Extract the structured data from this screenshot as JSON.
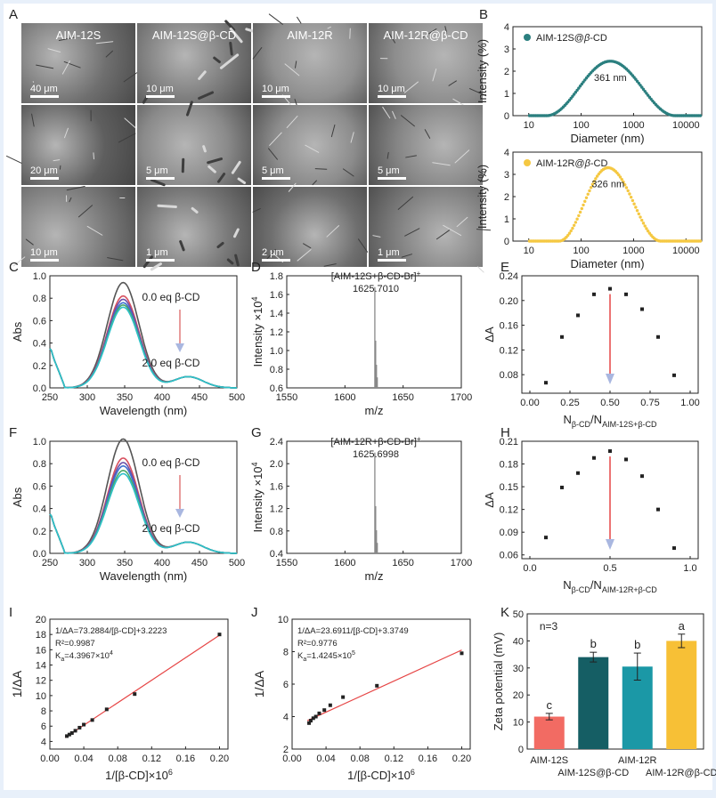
{
  "panels": {
    "A": "A",
    "B": "B",
    "C": "C",
    "D": "D",
    "E": "E",
    "F": "F",
    "G": "G",
    "H": "H",
    "I": "I",
    "J": "J",
    "K": "K"
  },
  "sem": {
    "headers": [
      "AIM-12S",
      "AIM-12S@β-CD",
      "AIM-12R",
      "AIM-12R@β-CD"
    ],
    "scales": [
      [
        "40 μm",
        "10 μm",
        "10 μm",
        "10 μm"
      ],
      [
        "20 μm",
        "5 μm",
        "5 μm",
        "5 μm"
      ],
      [
        "10 μm",
        "1 μm",
        "2 μm",
        "1 μm"
      ]
    ]
  },
  "colors": {
    "teal": "#2b7f7f",
    "yellow": "#f5c842",
    "red": "#e64545",
    "blue": "#a9b7e0",
    "accent": "#ef6b63"
  },
  "dls": [
    {
      "legend_prefix": "AIM-12S@",
      "legend_beta": "β",
      "legend_suffix": "-CD",
      "peak_label": "361 nm",
      "peak": 361,
      "range": [
        22,
        6200
      ],
      "ylabel": "Intensity (%)",
      "xlabel": "Diameter (nm)",
      "yticks": [
        "0",
        "1",
        "2",
        "3",
        "4"
      ],
      "xticks": [
        "10",
        "100",
        "1000",
        "10000"
      ]
    },
    {
      "legend_prefix": "AIM-12R@",
      "legend_beta": "β",
      "legend_suffix": "-CD",
      "peak_label": "326 nm",
      "peak": 326,
      "range": [
        38,
        3300
      ],
      "ylabel": "Intensity (%)",
      "xlabel": "Diameter (nm)",
      "yticks": [
        "0",
        "1",
        "2",
        "3",
        "4"
      ],
      "xticks": [
        "10",
        "100",
        "1000",
        "10000"
      ]
    }
  ],
  "uv": [
    {
      "ylabel": "Abs",
      "xlabel": "Wavelength (nm)",
      "yticks": [
        "0.0",
        "0.2",
        "0.4",
        "0.6",
        "0.8",
        "1.0"
      ],
      "xticks": [
        "250",
        "300",
        "350",
        "400",
        "450",
        "500"
      ],
      "top_note": "0.0 eq β-CD",
      "bottom_note": "2.0 eq β-CD",
      "peaks": [
        0.94,
        0.82,
        0.79,
        0.76,
        0.74,
        0.72
      ],
      "series_colors": [
        "#555555",
        "#d7505f",
        "#6b4fa8",
        "#3d6fd0",
        "#48a868",
        "#2ec0c8"
      ]
    },
    {
      "ylabel": "Abs",
      "xlabel": "Wavelength (nm)",
      "yticks": [
        "0.0",
        "0.2",
        "0.4",
        "0.6",
        "0.8",
        "1.0"
      ],
      "xticks": [
        "250",
        "300",
        "350",
        "400",
        "450",
        "500"
      ],
      "top_note": "0.0 eq β-CD",
      "bottom_note": "2.0 eq β-CD",
      "peaks": [
        1.02,
        0.85,
        0.81,
        0.78,
        0.74,
        0.71
      ],
      "series_colors": [
        "#555555",
        "#d7505f",
        "#6b4fa8",
        "#3d6fd0",
        "#48a868",
        "#2ec0c8"
      ]
    }
  ],
  "ms": [
    {
      "title": "[AIM-12S+β-CD-Br]",
      "title_sup": "+",
      "value_label": "1625.7010",
      "ylabel": "Intensity ×10",
      "ylabel_sup": "4",
      "xlabel": "m/z",
      "yticks": [
        "0.6",
        "0.8",
        "1.0",
        "1.2",
        "1.4",
        "1.6",
        "1.8"
      ],
      "xticks": [
        "1550",
        "1600",
        "1650",
        "1700"
      ],
      "peak": 1625.7
    },
    {
      "title": "[AIM-12R+β-CD-Br]",
      "title_sup": "+",
      "value_label": "1625.6998",
      "ylabel": "Intensity ×10",
      "ylabel_sup": "4",
      "xlabel": "m/z",
      "yticks": [
        "0.4",
        "0.8",
        "1.2",
        "1.6",
        "2.0",
        "2.4"
      ],
      "xticks": [
        "1550",
        "1600",
        "1650",
        "1700"
      ],
      "peak": 1625.7
    }
  ],
  "job": [
    {
      "ylabel": "ΔA",
      "xlabel": "N",
      "xsub": "β-CD",
      "xsep": "/N",
      "xsub2": "AIM-12S+β-CD",
      "yticks": [
        "0.08",
        "0.12",
        "0.16",
        "0.20",
        "0.24"
      ],
      "xticks": [
        "0.00",
        "0.25",
        "0.50",
        "0.75",
        "1.00"
      ],
      "x": [
        0.1,
        0.2,
        0.3,
        0.4,
        0.5,
        0.6,
        0.7,
        0.8,
        0.9
      ],
      "y": [
        0.067,
        0.141,
        0.176,
        0.21,
        0.219,
        0.21,
        0.186,
        0.141,
        0.079
      ],
      "ylim": [
        0.05,
        0.24
      ]
    },
    {
      "ylabel": "ΔA",
      "xlabel": "N",
      "xsub": "β-CD",
      "xsep": "/N",
      "xsub2": "AIM-12R+β-CD",
      "yticks": [
        "0.06",
        "0.09",
        "0.12",
        "0.15",
        "0.18",
        "0.21"
      ],
      "xticks": [
        "0.0",
        "0.5",
        "1.0"
      ],
      "x": [
        0.1,
        0.2,
        0.3,
        0.4,
        0.5,
        0.6,
        0.7,
        0.8,
        0.9
      ],
      "y": [
        0.083,
        0.149,
        0.168,
        0.188,
        0.197,
        0.186,
        0.164,
        0.12,
        0.069
      ],
      "ylim": [
        0.055,
        0.21
      ]
    }
  ],
  "bh": [
    {
      "eq1": "1/ΔA=73.2884/[β-CD]+3.2223",
      "eq2": "R²=0.9987",
      "eq3": "K",
      "eq3sub": "a",
      "eq3rest": "=4.3967×10",
      "eq3sup": "4",
      "ylabel": "1/ΔA",
      "xlabel": "1/[β-CD]×10",
      "xsup": "6",
      "yticks": [
        "4",
        "6",
        "8",
        "10",
        "12",
        "14",
        "16",
        "18",
        "20"
      ],
      "xticks": [
        "0.00",
        "0.04",
        "0.08",
        "0.12",
        "0.16",
        "0.20"
      ],
      "x": [
        0.02,
        0.023,
        0.026,
        0.03,
        0.035,
        0.04,
        0.05,
        0.067,
        0.1,
        0.2
      ],
      "y": [
        4.7,
        4.9,
        5.1,
        5.4,
        5.8,
        6.2,
        6.8,
        8.2,
        10.2,
        18.0
      ],
      "xlim": [
        0,
        0.21
      ],
      "ylim": [
        3,
        20
      ],
      "fit": [
        [
          0.018,
          4.5
        ],
        [
          0.2,
          17.9
        ]
      ]
    },
    {
      "eq1": "1/ΔA=23.6911/[β-CD]+3.3749",
      "eq2": "R²=0.9776",
      "eq3": "K",
      "eq3sub": "a",
      "eq3rest": "=1.4245×10",
      "eq3sup": "5",
      "ylabel": "1/ΔA",
      "xlabel": "1/[β-CD]×10",
      "xsup": "6",
      "yticks": [
        "2",
        "4",
        "6",
        "8",
        "10"
      ],
      "xticks": [
        "0.00",
        "0.04",
        "0.08",
        "0.12",
        "0.16",
        "0.20"
      ],
      "x": [
        0.02,
        0.022,
        0.025,
        0.028,
        0.032,
        0.038,
        0.045,
        0.06,
        0.1,
        0.2
      ],
      "y": [
        3.6,
        3.75,
        3.9,
        4.0,
        4.2,
        4.4,
        4.7,
        5.2,
        5.9,
        7.9
      ],
      "xlim": [
        0,
        0.21
      ],
      "ylim": [
        2,
        10
      ],
      "fit": [
        [
          0.018,
          3.75
        ],
        [
          0.2,
          8.1
        ]
      ]
    }
  ],
  "zeta": {
    "n_label": "n=3",
    "ylabel": "Zeta potential (mV)",
    "yticks": [
      "0",
      "10",
      "20",
      "30",
      "40",
      "50"
    ],
    "ylim": [
      0,
      50
    ],
    "bars": [
      {
        "name": "AIM-12S",
        "value": 12,
        "err": 1.2,
        "letter": "c",
        "color": "#f26b63"
      },
      {
        "name": "AIM-12S@β-CD",
        "value": 34,
        "err": 1.8,
        "letter": "b",
        "color": "#155e64"
      },
      {
        "name": "AIM-12R",
        "value": 30.5,
        "err": 5,
        "letter": "b",
        "color": "#1b98a6"
      },
      {
        "name": "AIM-12R@β-CD",
        "value": 40,
        "err": 2.5,
        "letter": "a",
        "color": "#f7c036"
      }
    ]
  }
}
